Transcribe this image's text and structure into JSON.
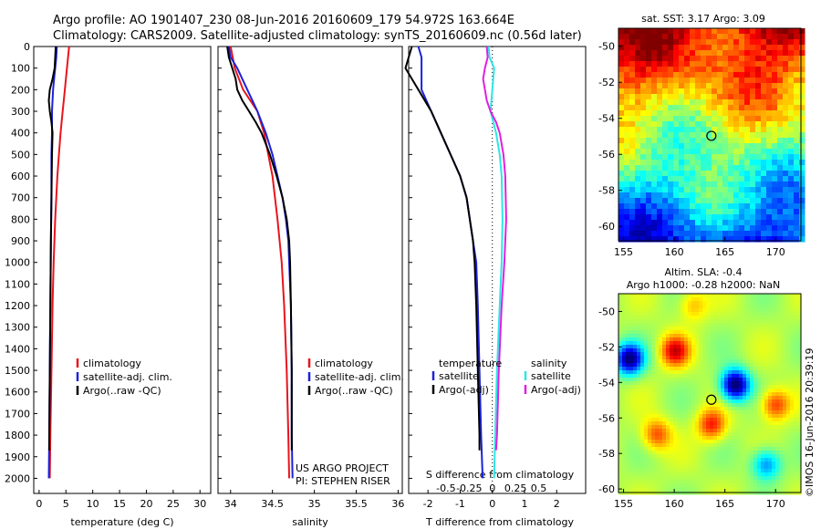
{
  "header": {
    "line1": "Argo profile: AO 1901407_230 08-Jun-2016 20160609_179 54.972S 163.664E",
    "line2": "Climatology: CARS2009. Satellite-adjusted climatology: synTS_20160609.nc (0.56d later)"
  },
  "footer": {
    "project": "US ARGO PROJECT",
    "pi": "PI: STEPHEN RISER",
    "imos": "©IMOS 16-Jun-2016 20:39:19"
  },
  "colors": {
    "climatology": "#e8141c",
    "satellite": "#1c22d8",
    "argo": "#000000",
    "sat_s": "#2ee6e6",
    "argo_s": "#e020e0"
  },
  "chart_data": [
    {
      "type": "line",
      "xlabel": "temperature (deg C)",
      "xticks": [
        "0",
        "5",
        "10",
        "15",
        "20",
        "25",
        "30"
      ],
      "xlim": [
        -1,
        32
      ],
      "yticks": [
        "0",
        "100",
        "200",
        "300",
        "400",
        "500",
        "600",
        "700",
        "800",
        "900",
        "1000",
        "1100",
        "1200",
        "1300",
        "1400",
        "1500",
        "1600",
        "1700",
        "1800",
        "1900",
        "2000"
      ],
      "ylim": [
        0,
        2070
      ],
      "legend": [
        "climatology",
        "satellite-adj. clim.",
        "Argo(..raw -QC)"
      ],
      "series": [
        {
          "name": "climatology",
          "color": "climatology",
          "depth": [
            0,
            50,
            100,
            200,
            300,
            400,
            500,
            600,
            800,
            1000,
            1200,
            1500,
            1800,
            2000
          ],
          "values": [
            5.6,
            5.4,
            5.2,
            4.8,
            4.4,
            4.0,
            3.7,
            3.4,
            3.0,
            2.7,
            2.5,
            2.3,
            2.1,
            2.0
          ]
        },
        {
          "name": "satellite-adj. clim.",
          "color": "satellite",
          "depth": [
            0,
            50,
            100,
            150,
            200,
            300,
            400,
            500,
            700,
            900,
            1200,
            1500,
            1800,
            2000
          ],
          "values": [
            3.3,
            3.2,
            3.0,
            2.8,
            2.6,
            2.4,
            2.4,
            2.3,
            2.3,
            2.2,
            2.1,
            2.0,
            1.9,
            1.8
          ]
        },
        {
          "name": "Argo(..raw -QC)",
          "color": "argo",
          "depth": [
            0,
            50,
            100,
            150,
            200,
            250,
            300,
            350,
            400,
            500,
            700,
            900,
            1200,
            1500,
            1800,
            1870
          ],
          "values": [
            3.1,
            3.0,
            2.9,
            2.5,
            2.0,
            1.8,
            2.0,
            2.3,
            2.5,
            2.4,
            2.3,
            2.2,
            2.1,
            2.0,
            1.9,
            1.9
          ]
        }
      ]
    },
    {
      "type": "line",
      "xlabel": "salinity",
      "xticks": [
        "34",
        "34.5",
        "35",
        "35.5",
        "36"
      ],
      "xlim": [
        33.85,
        36.05
      ],
      "yticks": [],
      "ylim": [
        0,
        2070
      ],
      "legend": [
        "climatology",
        "satellite-adj. clim.",
        "Argo(..raw -QC)"
      ],
      "series": [
        {
          "name": "climatology",
          "color": "climatology",
          "depth": [
            0,
            100,
            200,
            300,
            400,
            600,
            800,
            1000,
            1200,
            1500,
            1800,
            2000
          ],
          "values": [
            34.0,
            34.05,
            34.15,
            34.32,
            34.4,
            34.5,
            34.56,
            34.61,
            34.64,
            34.67,
            34.69,
            34.7
          ]
        },
        {
          "name": "satellite-adj. clim.",
          "color": "satellite",
          "depth": [
            0,
            50,
            100,
            200,
            300,
            400,
            500,
            600,
            700,
            800,
            900,
            1000,
            1200,
            1500,
            1800,
            2000
          ],
          "values": [
            33.98,
            34.0,
            34.08,
            34.2,
            34.32,
            34.42,
            34.5,
            34.56,
            34.62,
            34.66,
            34.69,
            34.7,
            34.72,
            34.73,
            34.73,
            34.74
          ]
        },
        {
          "name": "Argo(..raw -QC)",
          "color": "argo",
          "depth": [
            0,
            50,
            100,
            150,
            200,
            250,
            300,
            350,
            400,
            500,
            600,
            700,
            800,
            900,
            1000,
            1200,
            1500,
            1800,
            1870
          ],
          "values": [
            33.96,
            33.98,
            34.02,
            34.06,
            34.08,
            34.14,
            34.22,
            34.3,
            34.37,
            34.47,
            34.55,
            34.62,
            34.67,
            34.7,
            34.71,
            34.72,
            34.73,
            34.73,
            34.73
          ]
        }
      ]
    },
    {
      "type": "line",
      "xlabel": "T difference from climatology",
      "xlabel_top": "S difference from climatology",
      "xticks": [
        "-2",
        "-1",
        "0",
        "1",
        "2"
      ],
      "xticks_top": [
        "-0.5",
        "-0.25",
        "0",
        "0.25",
        "0.5"
      ],
      "xlim": [
        -2.6,
        2.9
      ],
      "yticks": [],
      "ylim": [
        0,
        2070
      ],
      "legend_t_title": "temperature",
      "legend_s_title": "salinity",
      "legend_t": [
        "satellite",
        "Argo(-adj)"
      ],
      "legend_s": [
        "satellite",
        "Argo(-adj)"
      ],
      "series": [
        {
          "name": "T satellite",
          "color": "satellite",
          "depth": [
            0,
            50,
            100,
            200,
            300,
            400,
            500,
            600,
            700,
            800,
            900,
            1000,
            1200,
            1500,
            1800,
            2000
          ],
          "values": [
            -2.3,
            -2.2,
            -2.2,
            -2.2,
            -1.9,
            -1.6,
            -1.3,
            -1.0,
            -0.8,
            -0.7,
            -0.6,
            -0.5,
            -0.45,
            -0.4,
            -0.35,
            -0.3
          ]
        },
        {
          "name": "T Argo(-adj)",
          "color": "argo",
          "depth": [
            0,
            50,
            100,
            150,
            200,
            300,
            400,
            500,
            600,
            700,
            800,
            900,
            1000,
            1200,
            1500,
            1800,
            1870
          ],
          "values": [
            -2.5,
            -2.6,
            -2.7,
            -2.5,
            -2.3,
            -1.9,
            -1.6,
            -1.3,
            -1.0,
            -0.8,
            -0.7,
            -0.6,
            -0.55,
            -0.5,
            -0.45,
            -0.4,
            -0.4
          ]
        },
        {
          "name": "S satellite",
          "color": "sat_s",
          "depth": [
            0,
            50,
            100,
            200,
            300,
            400,
            500,
            600,
            800,
            1000,
            1200,
            1500,
            1800,
            2000
          ],
          "values": [
            -0.04,
            -0.03,
            0.02,
            0.0,
            -0.02,
            0.04,
            0.08,
            0.1,
            0.11,
            0.1,
            0.08,
            0.05,
            0.03,
            0.02
          ]
        },
        {
          "name": "S Argo(-adj)",
          "color": "argo_s",
          "depth": [
            0,
            50,
            100,
            150,
            200,
            250,
            300,
            350,
            400,
            500,
            600,
            800,
            1000,
            1200,
            1500,
            1800,
            1870
          ],
          "values": [
            -0.06,
            -0.05,
            -0.08,
            -0.1,
            -0.08,
            -0.06,
            -0.02,
            0.04,
            0.08,
            0.12,
            0.14,
            0.15,
            0.13,
            0.1,
            0.07,
            0.05,
            0.04
          ]
        }
      ]
    },
    {
      "type": "heatmap",
      "title": "sat. SST: 3.17  Argo: 3.09",
      "xticks": [
        "155",
        "160",
        "165",
        "170"
      ],
      "yticks": [
        "-50",
        "-52",
        "-54",
        "-56",
        "-58",
        "-60"
      ],
      "xlim": [
        154.5,
        172.5
      ],
      "ylim": [
        -60.8,
        -49
      ]
    },
    {
      "type": "heatmap",
      "title": "Altim. SLA: -0.4",
      "subtitle": "Argo h1000: -0.28  h2000: NaN",
      "xticks": [
        "155",
        "160",
        "165",
        "170"
      ],
      "yticks": [
        "-50",
        "-52",
        "-54",
        "-56",
        "-58",
        "-60"
      ],
      "xlim": [
        154.5,
        172.5
      ],
      "ylim": [
        -60.2,
        -49
      ]
    }
  ]
}
